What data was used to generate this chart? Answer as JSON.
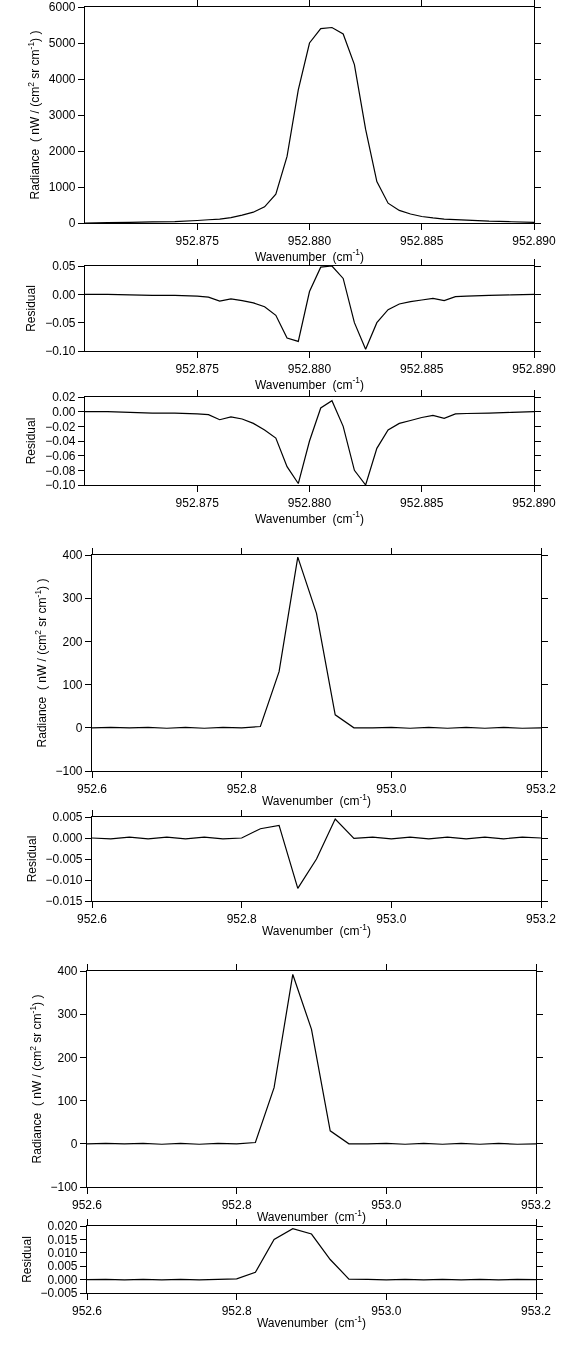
{
  "chart_data": [
    {
      "type": "line",
      "xlabel": "Wavenumber  (cm$^{-1}$)",
      "ylabel": "Radiance  ( nW / (cm$^{2}$ sr cm$^{-1}$) )",
      "xlim": [
        952.87,
        952.89
      ],
      "xticks": [
        952.875,
        {
          "value": 952.88,
          "label": "952.880"
        },
        952.885,
        {
          "value": 952.89,
          "label": "952.890"
        }
      ],
      "ylim": [
        0,
        6000
      ],
      "yticks": [
        0,
        1000,
        2000,
        3000,
        4000,
        5000,
        6000
      ],
      "x": [
        952.87,
        952.871,
        952.872,
        952.873,
        952.874,
        952.875,
        952.8755,
        952.876,
        952.8765,
        952.877,
        952.8775,
        952.878,
        952.8785,
        952.879,
        952.8795,
        952.88,
        952.8805,
        952.881,
        952.8815,
        952.882,
        952.8825,
        952.883,
        952.8835,
        952.884,
        952.8845,
        952.885,
        952.8855,
        952.886,
        952.8865,
        952.887,
        952.888,
        952.889,
        952.89
      ],
      "series": [
        {
          "color": "#000000",
          "values": [
            0,
            10,
            20,
            30,
            40,
            70,
            90,
            110,
            150,
            220,
            300,
            450,
            800,
            1850,
            3700,
            5000,
            5400,
            5430,
            5250,
            4400,
            2600,
            1150,
            550,
            350,
            250,
            180,
            140,
            110,
            95,
            80,
            50,
            35,
            20
          ]
        }
      ]
    },
    {
      "type": "line",
      "xlabel": "Wavenumber  (cm$^{-1}$)",
      "ylabel": "Residual",
      "xlim": [
        952.87,
        952.89
      ],
      "xticks": [
        952.875,
        {
          "value": 952.88,
          "label": "952.880"
        },
        952.885,
        {
          "value": 952.89,
          "label": "952.890"
        }
      ],
      "ylim": [
        -0.1,
        0.05
      ],
      "yticks": [
        {
          "value": -0.1,
          "label": "−0.10"
        },
        {
          "value": -0.05,
          "label": "−0.05"
        },
        {
          "value": 0,
          "label": "0.00"
        },
        0.05
      ],
      "x": [
        952.87,
        952.871,
        952.872,
        952.873,
        952.874,
        952.875,
        952.8755,
        952.876,
        952.8765,
        952.877,
        952.8775,
        952.878,
        952.8785,
        952.879,
        952.8795,
        952.88,
        952.8805,
        952.881,
        952.8815,
        952.882,
        952.8825,
        952.883,
        952.8835,
        952.884,
        952.8845,
        952.885,
        952.8855,
        952.886,
        952.8865,
        952.887,
        952.888,
        952.889,
        952.89
      ],
      "series": [
        {
          "color": "#000000",
          "values": [
            0,
            0,
            -0.001,
            -0.002,
            -0.002,
            -0.003,
            -0.005,
            -0.012,
            -0.008,
            -0.011,
            -0.015,
            -0.022,
            -0.037,
            -0.077,
            -0.083,
            0.005,
            0.048,
            0.05,
            0.028,
            -0.05,
            -0.097,
            -0.05,
            -0.027,
            -0.017,
            -0.013,
            -0.01,
            -0.007,
            -0.011,
            -0.004,
            -0.003,
            -0.002,
            -0.001,
            0
          ]
        }
      ]
    },
    {
      "type": "line",
      "xlabel": "Wavenumber  (cm$^{-1}$)",
      "ylabel": "Residual",
      "xlim": [
        952.87,
        952.89
      ],
      "xticks": [
        952.875,
        {
          "value": 952.88,
          "label": "952.880"
        },
        952.885,
        {
          "value": 952.89,
          "label": "952.890"
        }
      ],
      "ylim": [
        -0.1,
        0.02
      ],
      "yticks": [
        {
          "value": -0.1,
          "label": "−0.10"
        },
        {
          "value": -0.08,
          "label": "−0.08"
        },
        {
          "value": -0.06,
          "label": "−0.06"
        },
        {
          "value": -0.04,
          "label": "−0.04"
        },
        {
          "value": -0.02,
          "label": "−0.02"
        },
        {
          "value": 0,
          "label": "0.00"
        },
        0.02
      ],
      "x": [
        952.87,
        952.871,
        952.872,
        952.873,
        952.874,
        952.875,
        952.8755,
        952.876,
        952.8765,
        952.877,
        952.8775,
        952.878,
        952.8785,
        952.879,
        952.8795,
        952.88,
        952.8805,
        952.881,
        952.8815,
        952.882,
        952.8825,
        952.883,
        952.8835,
        952.884,
        952.8845,
        952.885,
        952.8855,
        952.886,
        952.8865,
        952.887,
        952.888,
        952.889,
        952.89
      ],
      "series": [
        {
          "color": "#000000",
          "values": [
            0,
            0,
            -0.001,
            -0.002,
            -0.002,
            -0.003,
            -0.004,
            -0.011,
            -0.007,
            -0.01,
            -0.016,
            -0.025,
            -0.036,
            -0.075,
            -0.098,
            -0.04,
            0.005,
            0.015,
            -0.02,
            -0.08,
            -0.1,
            -0.05,
            -0.025,
            -0.016,
            -0.012,
            -0.008,
            -0.005,
            -0.009,
            -0.003,
            -0.0025,
            -0.002,
            -0.001,
            0
          ]
        }
      ]
    },
    {
      "type": "line",
      "xlabel": "Wavenumber  (cm$^{-1}$)",
      "ylabel": "Radiance  ( nW / (cm$^{2}$ sr cm$^{-1}$) )",
      "xlim": [
        952.6,
        953.2
      ],
      "xticks": [
        952.6,
        952.8,
        {
          "value": 953.0,
          "label": "953.0"
        },
        953.2
      ],
      "ylim": [
        -100,
        400
      ],
      "yticks": [
        {
          "value": -100,
          "label": "−100"
        },
        0,
        100,
        200,
        300,
        400
      ],
      "x": [
        952.6,
        952.625,
        952.65,
        952.675,
        952.7,
        952.725,
        952.75,
        952.775,
        952.8,
        952.825,
        952.85,
        952.875,
        952.9,
        952.925,
        952.95,
        952.975,
        953.0,
        953.025,
        953.05,
        953.075,
        953.1,
        953.125,
        953.15,
        953.175,
        953.2
      ],
      "series": [
        {
          "color": "#000000",
          "values": [
            0,
            1,
            0,
            1,
            -1,
            1,
            -1,
            1,
            0,
            3,
            130,
            395,
            265,
            30,
            0,
            0,
            1,
            -1,
            1,
            -1,
            1,
            -1,
            1,
            -1,
            0
          ]
        }
      ]
    },
    {
      "type": "line",
      "xlabel": "Wavenumber  (cm$^{-1}$)",
      "ylabel": "Residual",
      "xlim": [
        952.6,
        953.2
      ],
      "xticks": [
        952.6,
        952.8,
        {
          "value": 953.0,
          "label": "953.0"
        },
        953.2
      ],
      "ylim": [
        -0.015,
        0.005
      ],
      "yticks": [
        {
          "value": -0.015,
          "label": "−0.015"
        },
        {
          "value": -0.01,
          "label": "−0.010"
        },
        {
          "value": -0.005,
          "label": "−0.005"
        },
        {
          "value": 0,
          "label": "0.000"
        },
        0.005
      ],
      "x": [
        952.6,
        952.625,
        952.65,
        952.675,
        952.7,
        952.725,
        952.75,
        952.775,
        952.8,
        952.825,
        952.85,
        952.875,
        952.9,
        952.925,
        952.95,
        952.975,
        953.0,
        953.025,
        953.05,
        953.075,
        953.1,
        953.125,
        953.15,
        953.175,
        953.2
      ],
      "series": [
        {
          "color": "#000000",
          "values": [
            0,
            -0.0002,
            0.0002,
            -0.0002,
            0.0002,
            -0.0002,
            0.0002,
            -0.0002,
            0,
            0.0022,
            0.003,
            -0.012,
            -0.005,
            0.0045,
            -0.0001,
            0.0002,
            -0.0002,
            0.0002,
            -0.0002,
            0.0002,
            -0.0002,
            0.0002,
            -0.0002,
            0.0002,
            0
          ]
        }
      ]
    },
    {
      "type": "line",
      "xlabel": "Wavenumber  (cm$^{-1}$)",
      "ylabel": "Radiance  ( nW / (cm$^{2}$ sr cm$^{-1}$) )",
      "xlim": [
        952.6,
        953.2
      ],
      "xticks": [
        952.6,
        952.8,
        {
          "value": 953.0,
          "label": "953.0"
        },
        953.2
      ],
      "ylim": [
        -100,
        400
      ],
      "yticks": [
        {
          "value": -100,
          "label": "−100"
        },
        0,
        100,
        200,
        300,
        400
      ],
      "x": [
        952.6,
        952.625,
        952.65,
        952.675,
        952.7,
        952.725,
        952.75,
        952.775,
        952.8,
        952.825,
        952.85,
        952.875,
        952.9,
        952.925,
        952.95,
        952.975,
        953.0,
        953.025,
        953.05,
        953.075,
        953.1,
        953.125,
        953.15,
        953.175,
        953.2
      ],
      "series": [
        {
          "color": "#000000",
          "values": [
            0,
            1,
            0,
            1,
            -1,
            1,
            -1,
            1,
            0,
            3,
            130,
            392,
            265,
            30,
            0,
            0,
            1,
            -1,
            1,
            -1,
            1,
            -1,
            1,
            -1,
            0
          ]
        }
      ]
    },
    {
      "type": "line",
      "xlabel": "Wavenumber  (cm$^{-1}$)",
      "ylabel": "Residual",
      "xlim": [
        952.6,
        953.2
      ],
      "xticks": [
        952.6,
        952.8,
        {
          "value": 953.0,
          "label": "953.0"
        },
        953.2
      ],
      "ylim": [
        -0.005,
        0.02
      ],
      "yticks": [
        {
          "value": -0.005,
          "label": "−0.005"
        },
        {
          "value": 0,
          "label": "0.000"
        },
        0.005,
        {
          "value": 0.01,
          "label": "0.010"
        },
        0.015,
        {
          "value": 0.02,
          "label": "0.020"
        }
      ],
      "x": [
        952.6,
        952.625,
        952.65,
        952.675,
        952.7,
        952.725,
        952.75,
        952.775,
        952.8,
        952.825,
        952.85,
        952.875,
        952.9,
        952.925,
        952.95,
        952.975,
        953.0,
        953.025,
        953.05,
        953.075,
        953.1,
        953.125,
        953.15,
        953.175,
        953.2
      ],
      "series": [
        {
          "color": "#000000",
          "values": [
            0,
            0.0001,
            -0.0001,
            0.0001,
            -0.0001,
            0.0001,
            -0.0001,
            0.0001,
            0.0003,
            0.0027,
            0.015,
            0.019,
            0.017,
            0.0075,
            0.0002,
            0.0001,
            -0.0001,
            0.0001,
            -0.0001,
            0.0001,
            -0.0001,
            0.0001,
            -0.0001,
            0.0001,
            0
          ]
        }
      ]
    }
  ]
}
